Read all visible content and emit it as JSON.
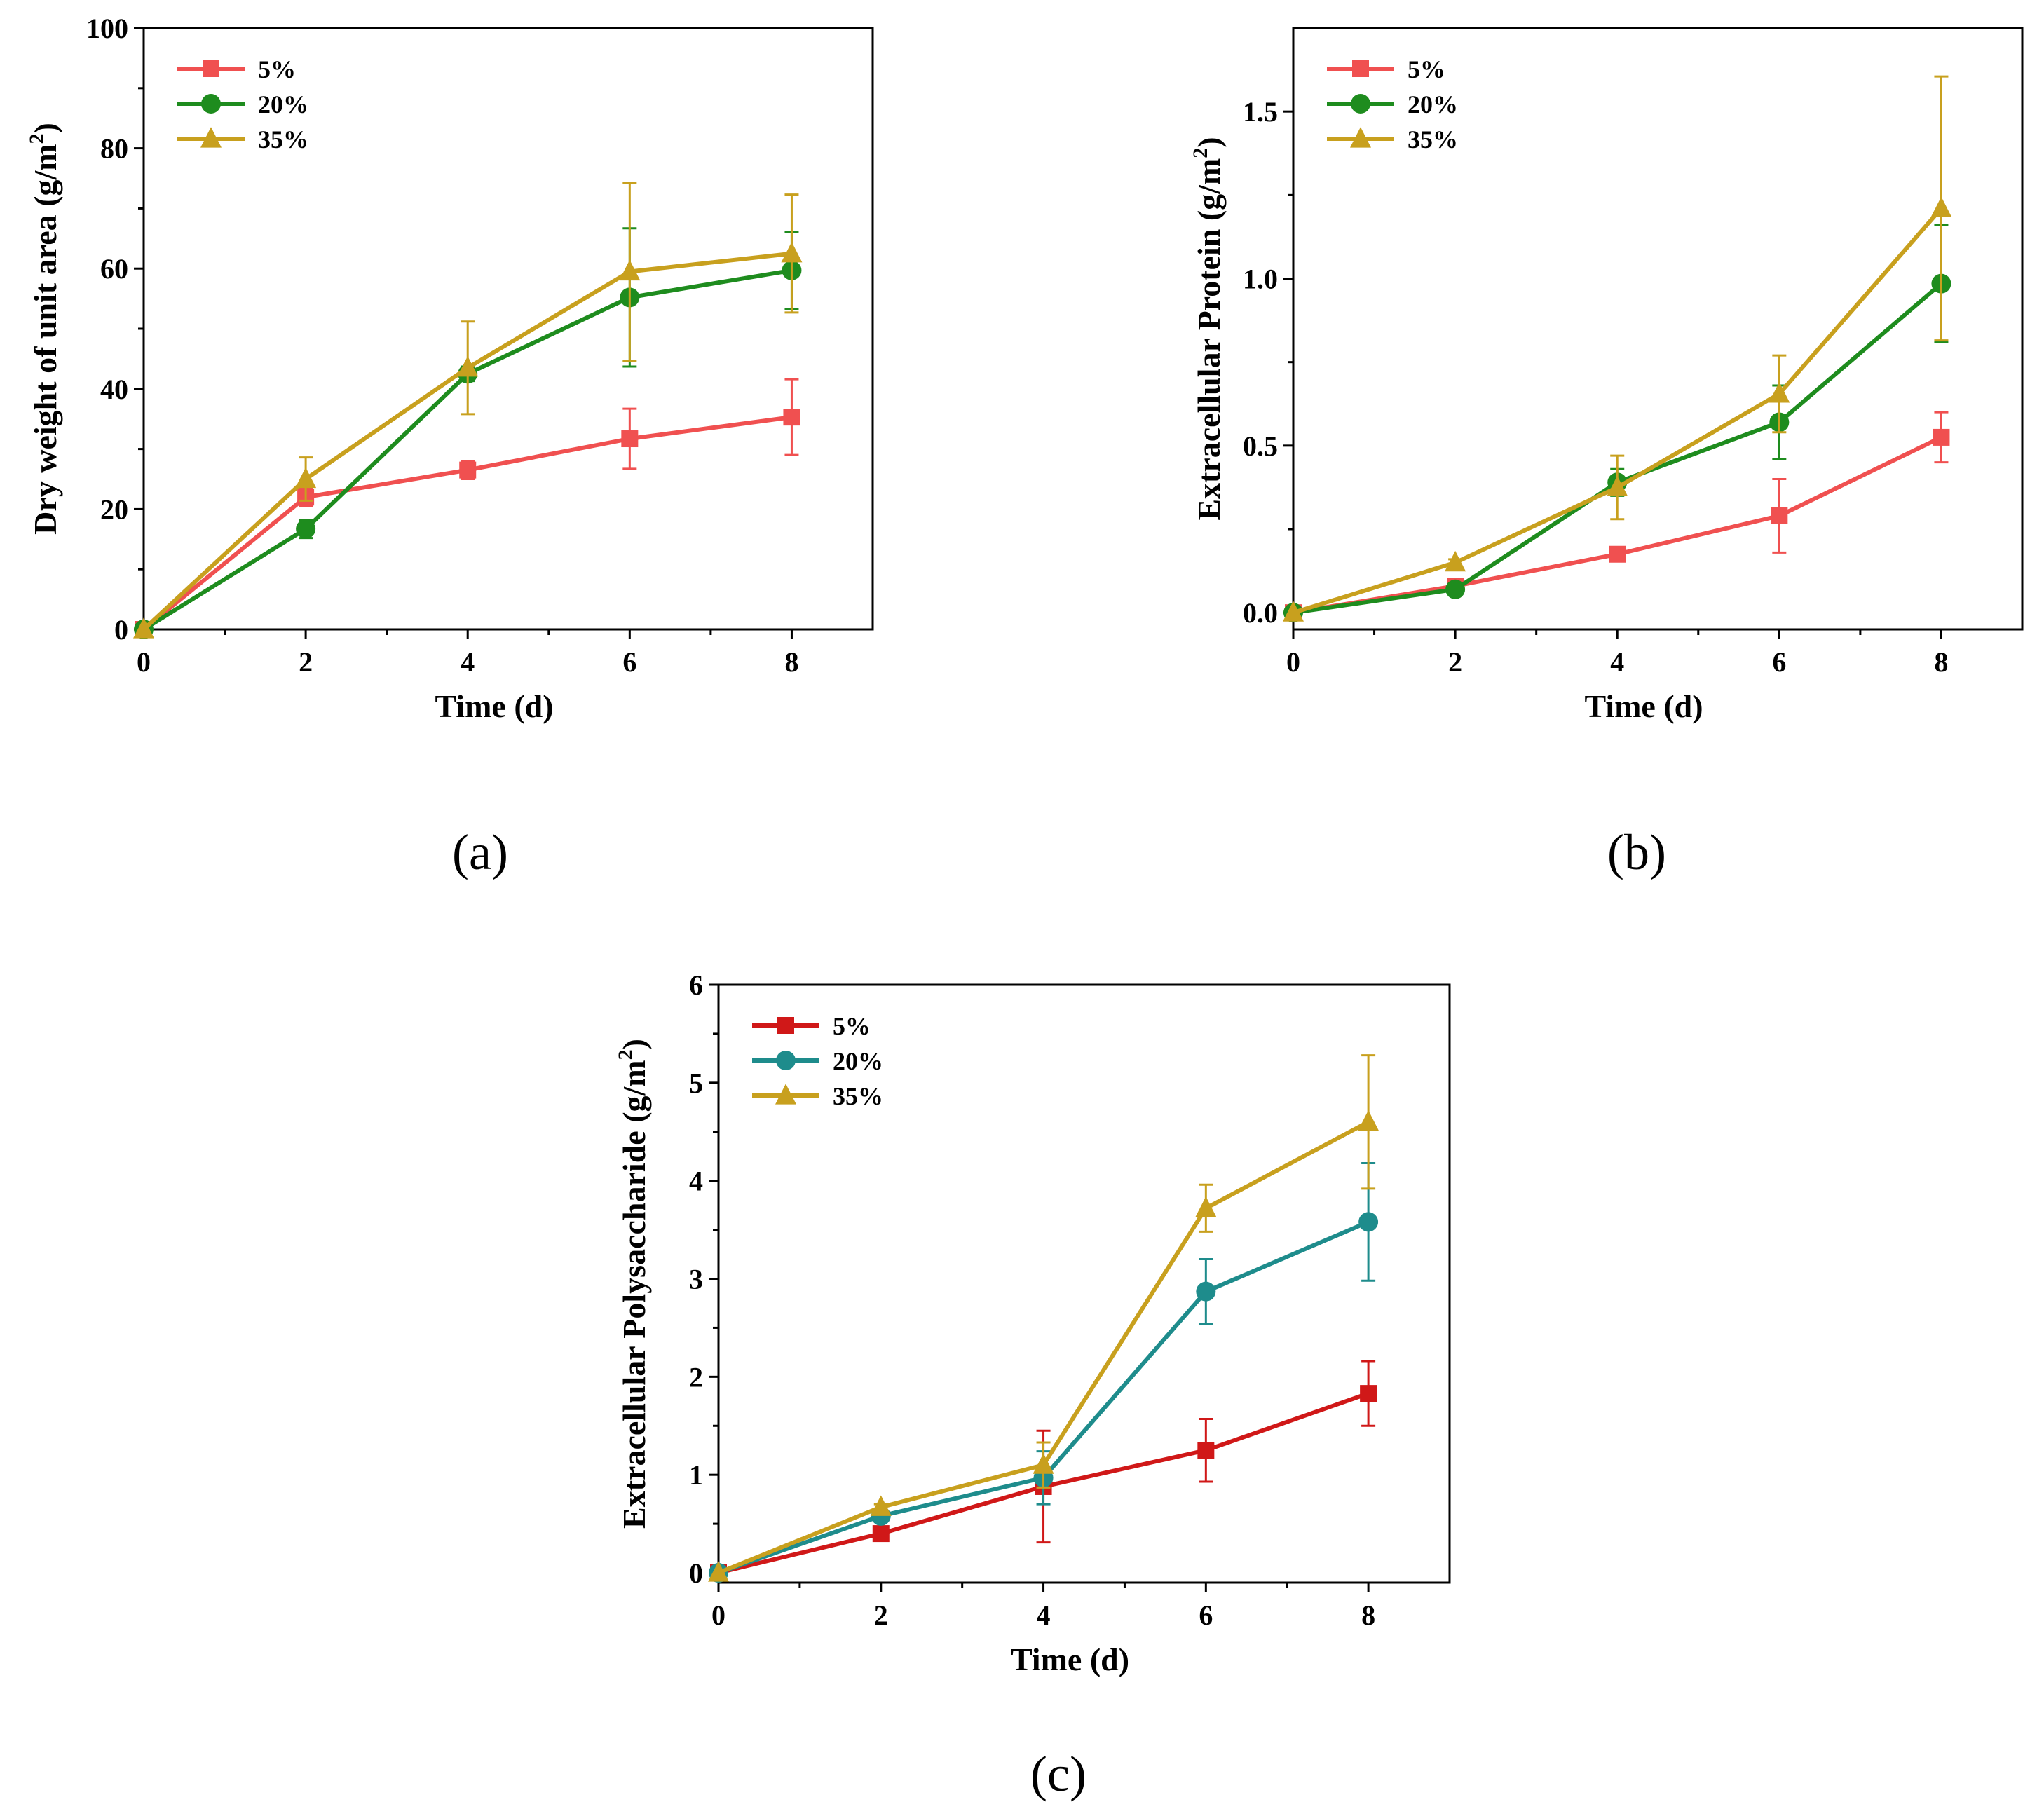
{
  "chart_data": [
    {
      "type": "line",
      "panel_label": "(a)",
      "xlabel": "Time (d)",
      "ylabel": "Dry weight of unit area (g/m",
      "ylabel_sup": "2",
      "ylabel_close": ")",
      "xlim": [
        0,
        9
      ],
      "ylim": [
        0,
        100
      ],
      "xticks": [
        0,
        2,
        4,
        6,
        8
      ],
      "yticks": [
        0,
        20,
        40,
        60,
        80,
        100
      ],
      "ytick_labels": [
        "0",
        "20",
        "40",
        "60",
        "80",
        "100"
      ],
      "legend_position": "top-left",
      "x": [
        0,
        2,
        4,
        6,
        8
      ],
      "series": [
        {
          "name": "5%",
          "color": "#f05050",
          "marker": "square",
          "values": [
            0,
            22,
            26.5,
            31.7,
            35.3
          ],
          "errors": [
            0,
            1.5,
            1.5,
            5,
            6.3
          ]
        },
        {
          "name": "20%",
          "color": "#1e8c1e",
          "marker": "circle",
          "values": [
            0,
            16.7,
            42.5,
            55.2,
            59.7
          ],
          "errors": [
            0,
            1.5,
            1.2,
            11.5,
            6.4
          ]
        },
        {
          "name": "35%",
          "color": "#c8a01e",
          "marker": "triangle",
          "values": [
            0,
            25,
            43.5,
            59.5,
            62.5
          ],
          "errors": [
            0,
            3.6,
            7.7,
            14.8,
            9.8
          ]
        }
      ]
    },
    {
      "type": "line",
      "panel_label": "(b)",
      "xlabel": "Time (d)",
      "ylabel": "Extracellular Protein (g/m",
      "ylabel_sup": "2",
      "ylabel_close": ")",
      "xlim": [
        0,
        9
      ],
      "ylim": [
        -0.05,
        1.75
      ],
      "xticks": [
        0,
        2,
        4,
        6,
        8
      ],
      "yticks": [
        0,
        0.5,
        1.0,
        1.5
      ],
      "ytick_labels": [
        "0.0",
        "0.5",
        "1.0",
        "1.5"
      ],
      "legend_position": "top-left",
      "x": [
        0,
        2,
        4,
        6,
        8
      ],
      "series": [
        {
          "name": "5%",
          "color": "#f05050",
          "marker": "square",
          "values": [
            0,
            0.08,
            0.175,
            0.29,
            0.525
          ],
          "errors": [
            0,
            0.01,
            0.01,
            0.11,
            0.075
          ]
        },
        {
          "name": "20%",
          "color": "#1e8c1e",
          "marker": "circle",
          "values": [
            0,
            0.07,
            0.39,
            0.57,
            0.985
          ],
          "errors": [
            0,
            0.01,
            0.04,
            0.11,
            0.175
          ]
        },
        {
          "name": "35%",
          "color": "#c8a01e",
          "marker": "triangle",
          "values": [
            0,
            0.15,
            0.375,
            0.655,
            1.21
          ],
          "errors": [
            0,
            0.01,
            0.095,
            0.115,
            0.395
          ]
        }
      ]
    },
    {
      "type": "line",
      "panel_label": "(c)",
      "xlabel": "Time (d)",
      "ylabel": "Extracellular Polysaccharide (g/m",
      "ylabel_sup": "2",
      "ylabel_close": ")",
      "xlim": [
        0,
        9
      ],
      "ylim": [
        -0.1,
        6
      ],
      "xticks": [
        0,
        2,
        4,
        6,
        8
      ],
      "yticks": [
        0,
        1,
        2,
        3,
        4,
        5,
        6
      ],
      "ytick_labels": [
        "0",
        "1",
        "2",
        "3",
        "4",
        "5",
        "6"
      ],
      "legend_position": "top-left",
      "x": [
        0,
        2,
        4,
        6,
        8
      ],
      "series": [
        {
          "name": "5%",
          "color": "#d01818",
          "marker": "square",
          "values": [
            0,
            0.4,
            0.88,
            1.25,
            1.83
          ],
          "errors": [
            0,
            0.03,
            0.57,
            0.32,
            0.33
          ]
        },
        {
          "name": "20%",
          "color": "#1e8c8c",
          "marker": "circle",
          "values": [
            0,
            0.58,
            0.97,
            2.87,
            3.58
          ],
          "errors": [
            0,
            0.03,
            0.27,
            0.33,
            0.6
          ]
        },
        {
          "name": "35%",
          "color": "#c8a01e",
          "marker": "triangle",
          "values": [
            0,
            0.67,
            1.1,
            3.72,
            4.6
          ],
          "errors": [
            0,
            0.03,
            0.23,
            0.24,
            0.68
          ]
        }
      ]
    }
  ]
}
